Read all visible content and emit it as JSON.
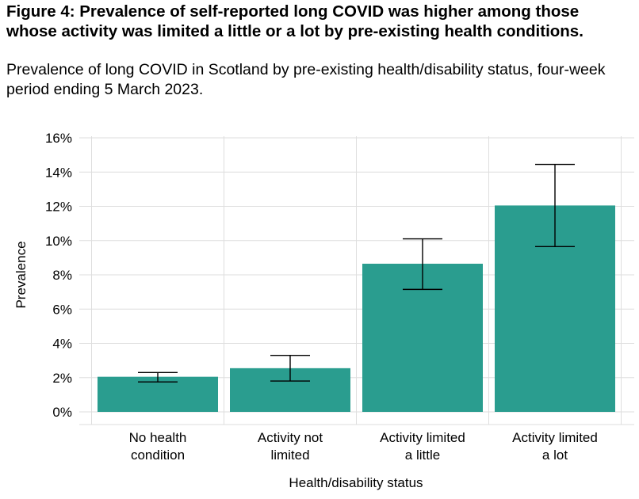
{
  "figure": {
    "title": "Figure 4: Prevalence of self-reported long COVID was higher among those whose activity was limited a little or a lot by pre-existing health conditions.",
    "subtitle": "Prevalence of long COVID in Scotland by pre-existing health/disability status, four-week period ending 5 March 2023."
  },
  "chart_data": {
    "type": "bar",
    "title": "",
    "xlabel": "Health/disability status",
    "ylabel": "Prevalence",
    "categories": [
      [
        "No health",
        "condition"
      ],
      [
        "Activity not",
        "limited"
      ],
      [
        "Activity limited",
        "a little"
      ],
      [
        "Activity limited",
        "a lot"
      ]
    ],
    "values": [
      2.05,
      2.55,
      8.65,
      12.05
    ],
    "error_lower": [
      1.75,
      1.8,
      7.15,
      9.65
    ],
    "error_upper": [
      2.3,
      3.3,
      10.1,
      14.45
    ],
    "ylim": [
      0,
      16
    ],
    "yticks": [
      0,
      2,
      4,
      6,
      8,
      10,
      12,
      14,
      16
    ],
    "ytick_labels": [
      "0%",
      "2%",
      "4%",
      "6%",
      "8%",
      "10%",
      "12%",
      "14%",
      "16%"
    ],
    "grid": "horizontal",
    "bar_color": "#2a9d8f",
    "gridline_color": "#dedede",
    "errorbar_color": "#000000"
  }
}
